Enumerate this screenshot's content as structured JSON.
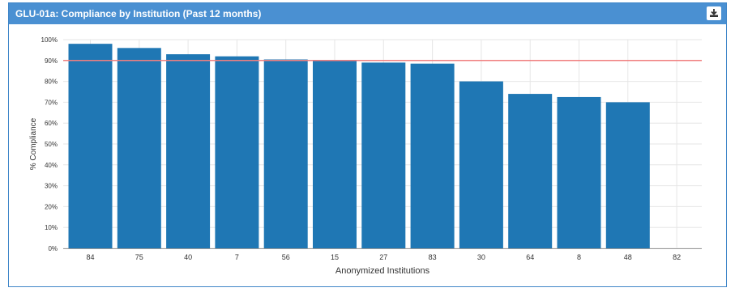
{
  "panel": {
    "title": "GLU-01a: Compliance by Institution (Past 12 months)",
    "download_icon": "download-icon"
  },
  "colors": {
    "header": "#4a90d2",
    "bar": "#1f77b4",
    "threshold": "#f07f7f",
    "grid": "#e6e6e6"
  },
  "chart_data": {
    "type": "bar",
    "title": "",
    "xlabel": "Anonymized Institutions",
    "ylabel": "% Compliance",
    "categories": [
      "84",
      "75",
      "40",
      "7",
      "56",
      "15",
      "27",
      "83",
      "30",
      "64",
      "8",
      "48",
      "82"
    ],
    "values": [
      98,
      96,
      93,
      92,
      90.5,
      90,
      89,
      88.5,
      80,
      74,
      72.5,
      70,
      null
    ],
    "ylim": [
      0,
      100
    ],
    "yticks": [
      "0%",
      "10%",
      "20%",
      "30%",
      "40%",
      "50%",
      "60%",
      "70%",
      "80%",
      "90%",
      "100%"
    ],
    "threshold": 90,
    "grid": true,
    "legend": "none"
  }
}
